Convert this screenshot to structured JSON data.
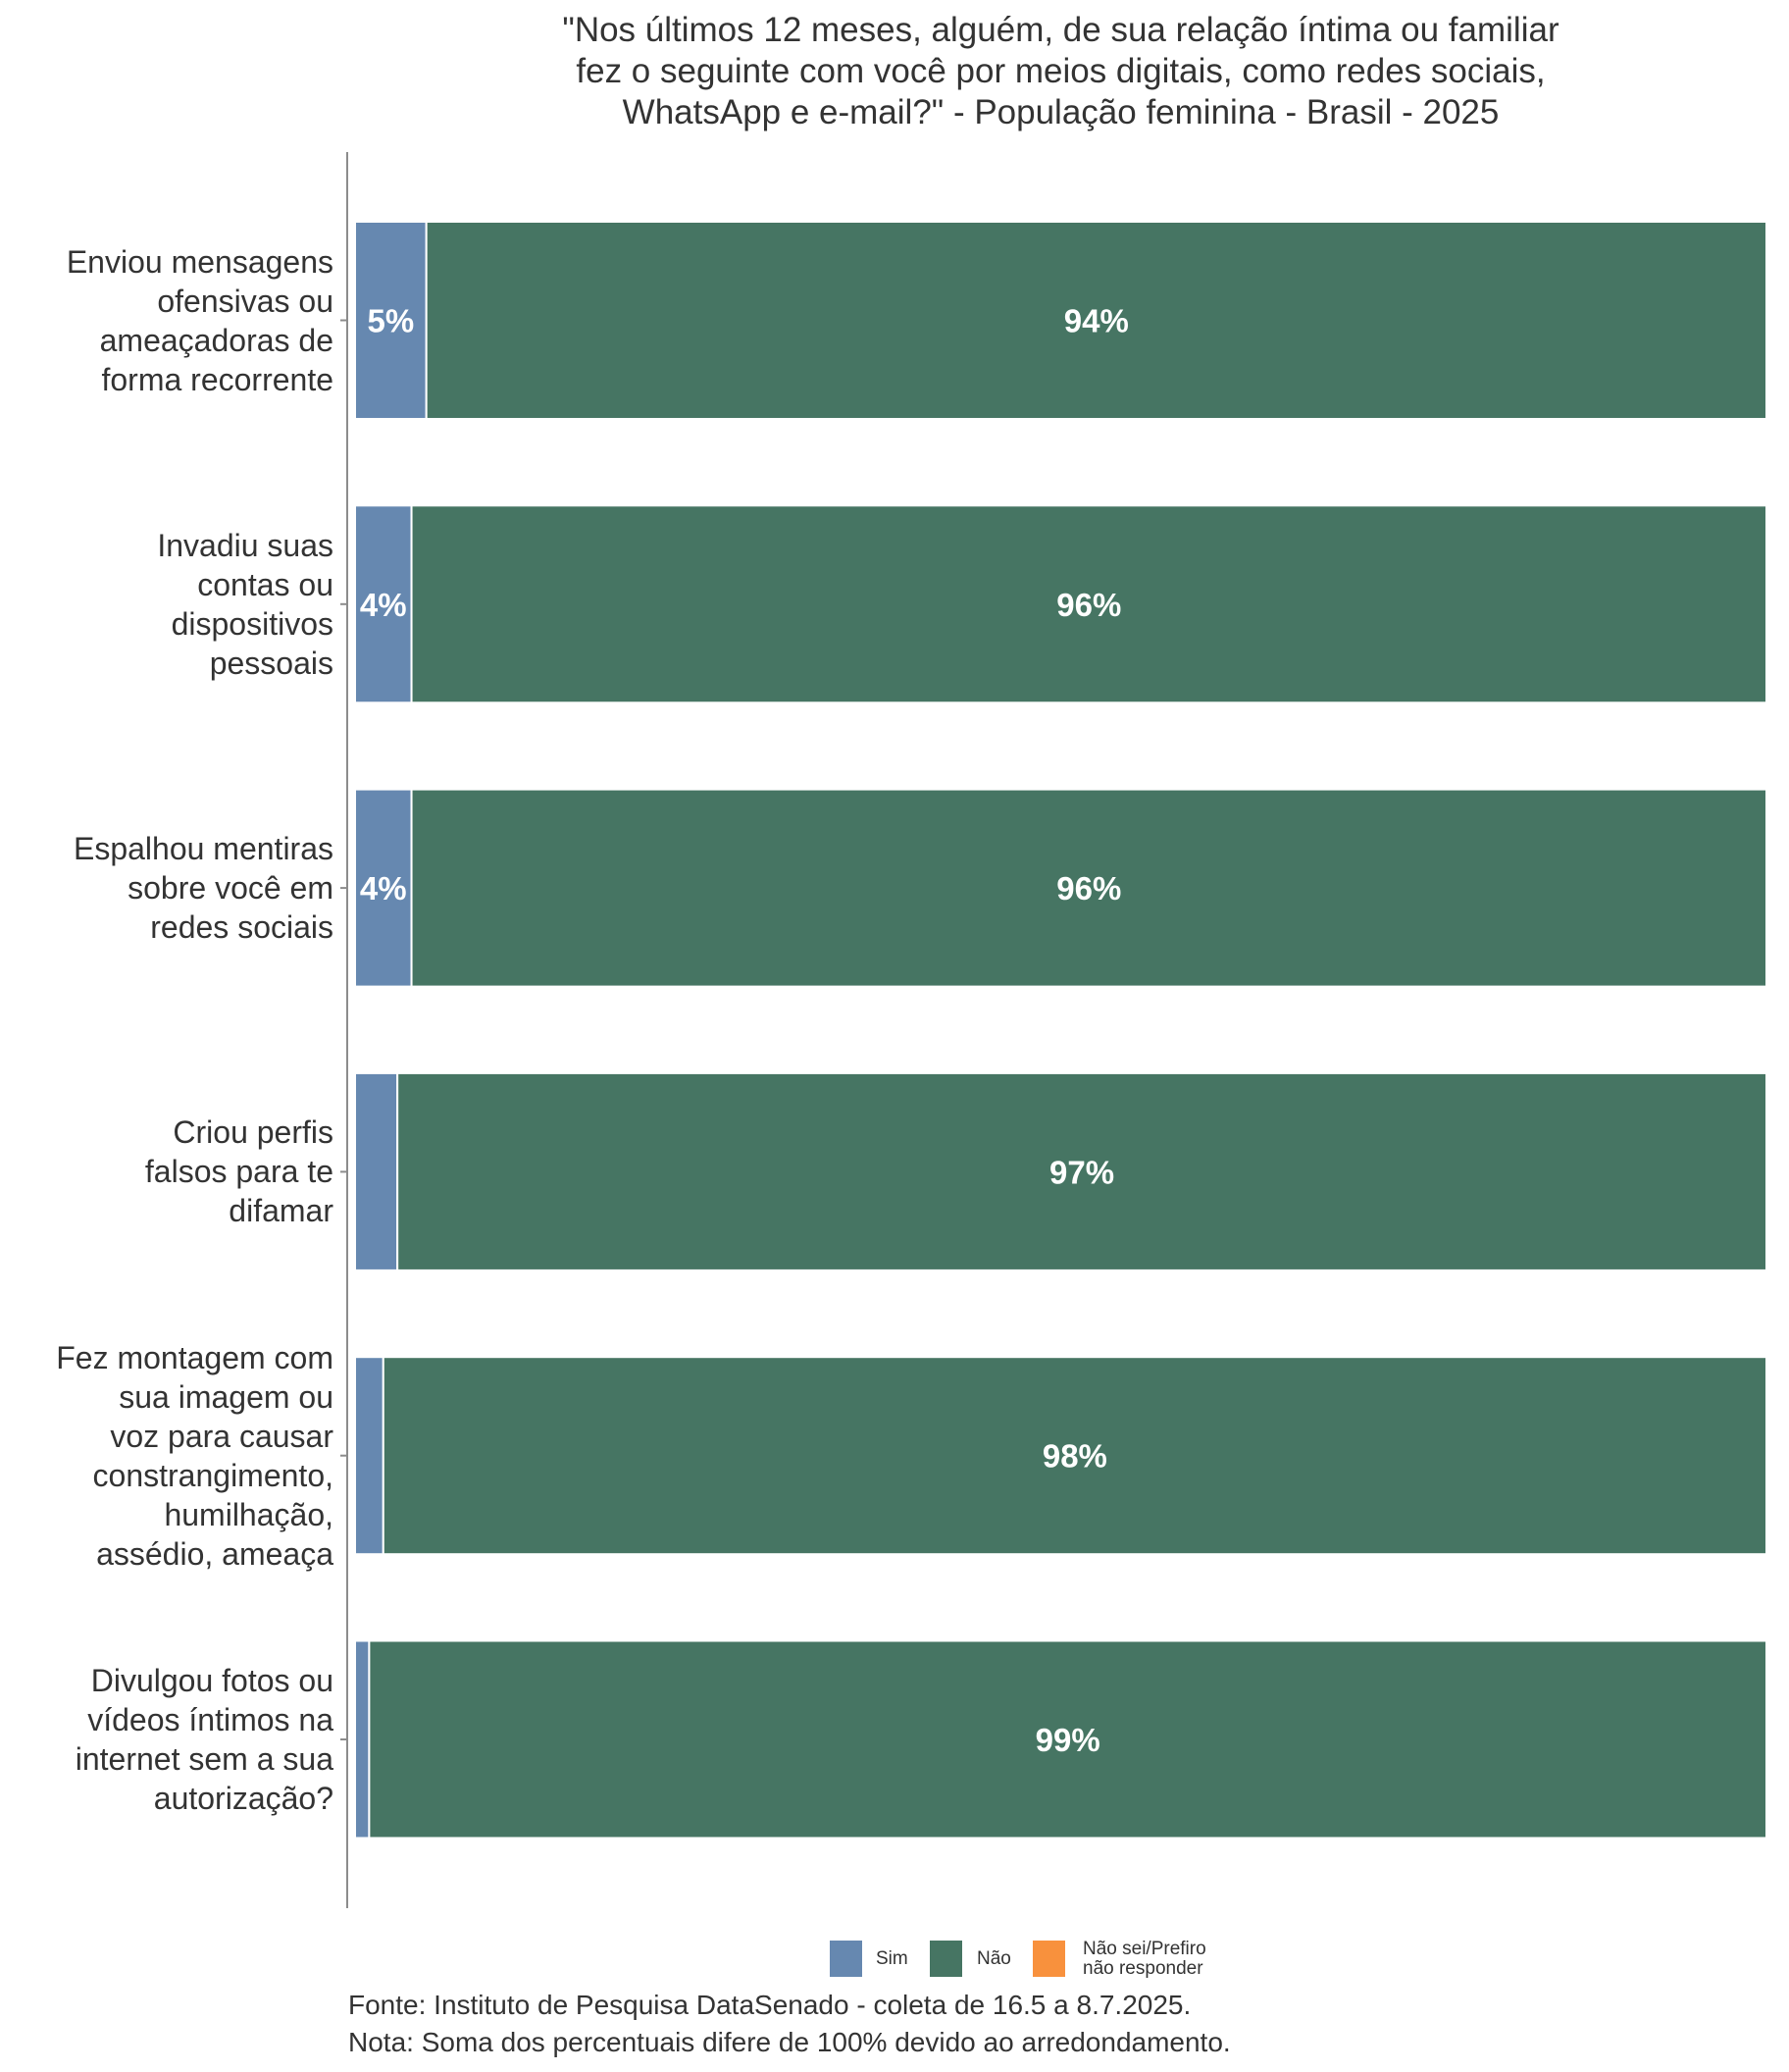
{
  "chart_data": {
    "type": "bar",
    "orientation": "horizontal",
    "stacked": true,
    "title": [
      "\"Nos últimos 12 meses, alguém, de sua relação íntima ou familiar",
      "fez o seguinte com você por meios digitais, como redes sociais,",
      "WhatsApp e e-mail?\" - População feminina - Brasil - 2025"
    ],
    "xlabel": "",
    "ylabel": "",
    "categories": [
      [
        "Enviou mensagens",
        "ofensivas ou",
        "ameaçadoras de",
        "forma recorrente"
      ],
      [
        "Invadiu suas",
        "contas ou",
        "dispositivos",
        "pessoais"
      ],
      [
        "Espalhou mentiras",
        "sobre você em",
        "redes sociais"
      ],
      [
        "Criou perfis",
        "falsos para te",
        "difamar"
      ],
      [
        "Fez montagem com",
        "sua imagem ou",
        "voz para causar",
        "constrangimento,",
        "humilhação,",
        "assédio, ameaça"
      ],
      [
        "Divulgou fotos ou",
        "vídeos íntimos na",
        "internet sem a sua",
        "autorização?"
      ]
    ],
    "series": [
      {
        "name": "Sim",
        "color": "#6688b0",
        "values": [
          5,
          4,
          4,
          3,
          2,
          1
        ],
        "labels": [
          "5%",
          "4%",
          "4%",
          "",
          "",
          ""
        ]
      },
      {
        "name": "Não",
        "color": "#467563",
        "values": [
          94,
          96,
          96,
          97,
          98,
          99
        ],
        "labels": [
          "94%",
          "96%",
          "96%",
          "97%",
          "98%",
          "99%"
        ]
      },
      {
        "name": "Não sei/Prefiro não responder",
        "color": "#f8913d",
        "values": [
          0,
          0,
          0,
          0,
          0,
          0
        ],
        "labels": [
          "",
          "",
          "",
          "",
          "",
          ""
        ]
      }
    ],
    "xlim": [
      0,
      100
    ],
    "grid": false,
    "legend_position": "bottom"
  },
  "legend": [
    {
      "label_lines": [
        "Sim"
      ],
      "color": "#6688b0"
    },
    {
      "label_lines": [
        "Não"
      ],
      "color": "#467563"
    },
    {
      "label_lines": [
        "Não sei/Prefiro",
        "não responder"
      ],
      "color": "#f8913d"
    }
  ],
  "footer": {
    "source": "Fonte: Instituto de Pesquisa DataSenado - coleta de 16.5 a 8.7.2025.",
    "note": "Nota: Soma dos percentuais difere de 100% devido ao arredondamento."
  }
}
